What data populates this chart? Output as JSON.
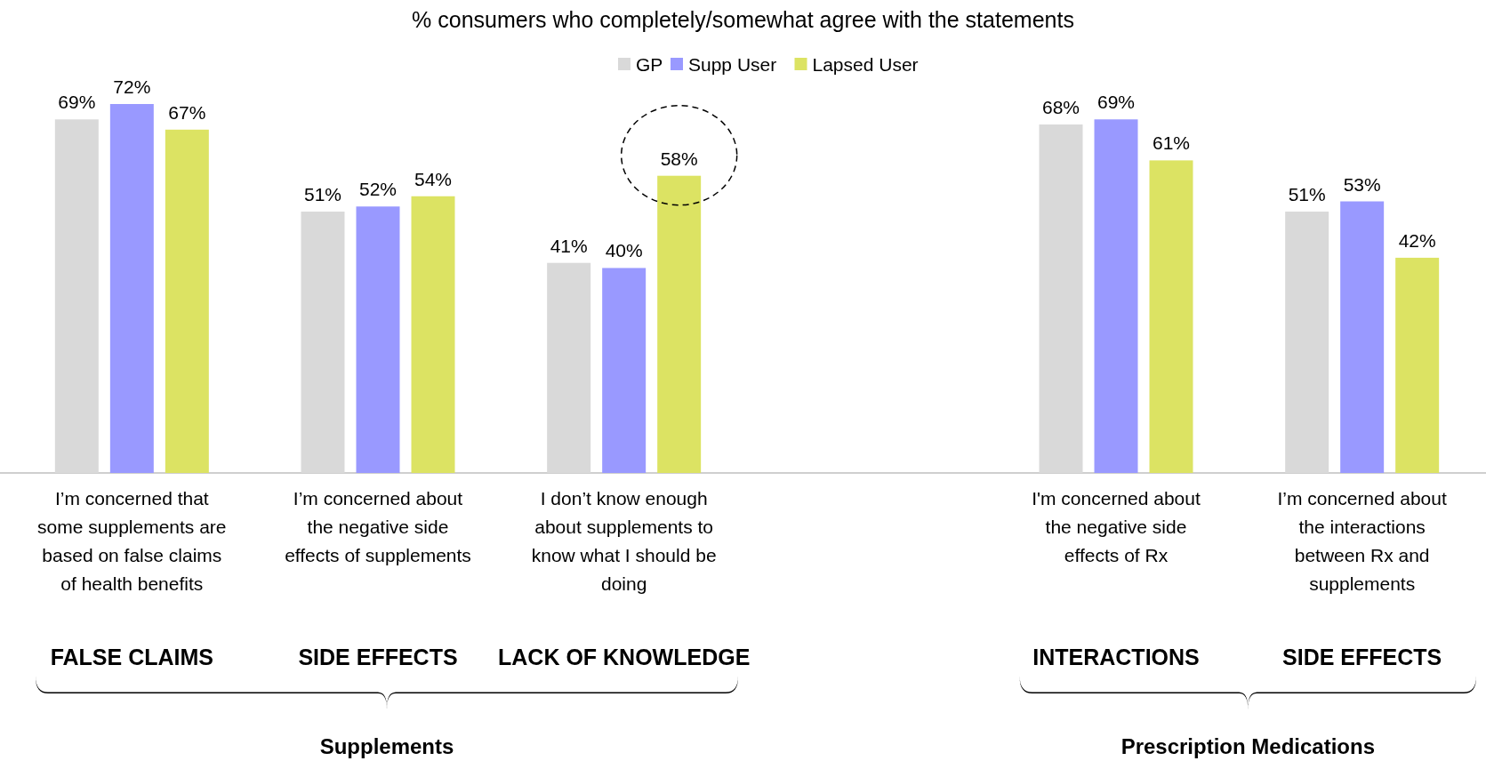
{
  "chart_data": {
    "type": "bar",
    "title": "% consumers who completely/somewhat agree with the statements",
    "categories": [
      "I’m concerned that some supplements are based on false claims of health benefits",
      "I’m concerned about the negative side effects of supplements",
      "I don’t know enough about supplements to know what I should be doing",
      null,
      "I'm concerned about the negative side effects of Rx",
      "I’m concerned about the interactions between Rx and supplements"
    ],
    "series": [
      {
        "name": "GP",
        "color": "#d9d9d9",
        "values": [
          69,
          51,
          41,
          null,
          68,
          51
        ],
        "value_labels": [
          "69%",
          "51%",
          "41%",
          null,
          "68%",
          "51%"
        ]
      },
      {
        "name": "Supp User",
        "color": "#9999ff",
        "values": [
          72,
          52,
          40,
          null,
          69,
          53
        ],
        "value_labels": [
          "72%",
          "52%",
          "40%",
          null,
          "69%",
          "53%"
        ]
      },
      {
        "name": "Lapsed User",
        "color": "#dce363",
        "values": [
          67,
          54,
          58,
          null,
          61,
          42
        ],
        "value_labels": [
          "67%",
          "54%",
          "58%",
          null,
          "61%",
          "42%"
        ]
      }
    ],
    "legend": "top",
    "annotations": [
      "FALSE CLAIMS",
      "SIDE EFFECTS",
      "LACK OF KNOWLEDGE",
      "INTERACTIONS",
      "SIDE EFFECTS",
      "Supplements",
      "Prescription Medications"
    ]
  }
}
